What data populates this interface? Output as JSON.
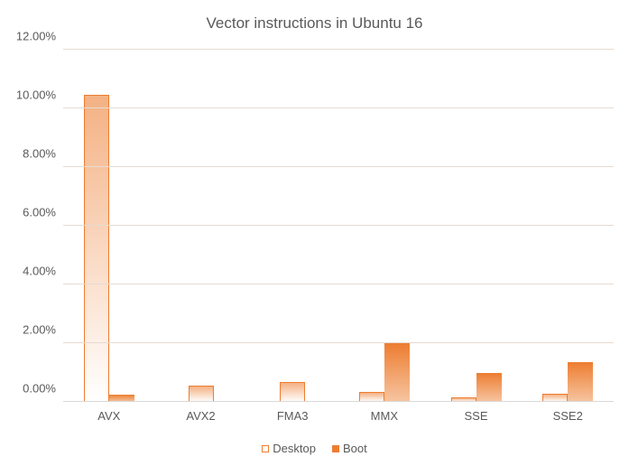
{
  "chart": {
    "type": "bar",
    "title": "Vector instructions in Ubuntu 16",
    "title_fontsize": 17,
    "categories": [
      "AVX",
      "AVX2",
      "FMA3",
      "MMX",
      "SSE",
      "SSE2"
    ],
    "series": [
      {
        "name": "Desktop",
        "values": [
          10.45,
          0.55,
          0.68,
          0.35,
          0.15,
          0.27
        ],
        "outline_color": "#ed7d31",
        "fill_start": "#f4b183",
        "fill_end": "#ffffff"
      },
      {
        "name": "Boot",
        "values": [
          0.25,
          0.0,
          0.0,
          2.0,
          0.97,
          1.35
        ],
        "fill_start": "#ed7d31",
        "fill_end": "#f6c5a1"
      }
    ],
    "y": {
      "min": 0,
      "max": 12,
      "step": 2,
      "ticks": [
        "0.00%",
        "2.00%",
        "4.00%",
        "6.00%",
        "8.00%",
        "10.00%",
        "12.00%"
      ]
    },
    "grid_color": "#e7dbd1",
    "baseline_color": "#d9d9d9",
    "tick_fontsize": 13,
    "background_color": "#ffffff",
    "legend": {
      "items": [
        "Desktop",
        "Boot"
      ]
    }
  }
}
